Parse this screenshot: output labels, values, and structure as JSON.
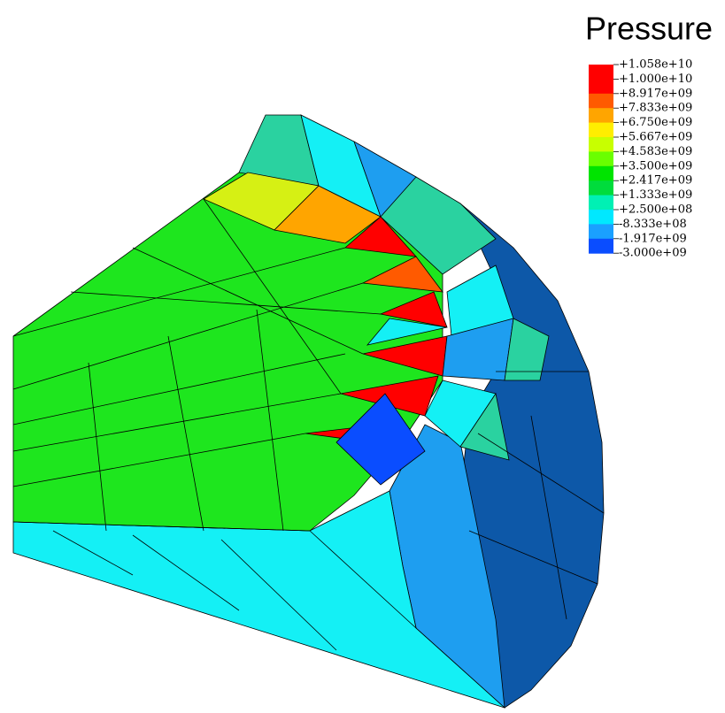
{
  "title": "Pressure",
  "legend": {
    "labels": [
      "+1.058e+10",
      "+1.000e+10",
      "+8.917e+09",
      "+7.833e+09",
      "+6.750e+09",
      "+5.667e+09",
      "+4.583e+09",
      "+3.500e+09",
      "+2.417e+09",
      "+1.333e+09",
      "+2.500e+08",
      "-8.333e+08",
      "-1.917e+09",
      "-3.000e+09"
    ],
    "colors": [
      "#ff0000",
      "#ff0000",
      "#ff5a00",
      "#ffa500",
      "#ffee00",
      "#c8ff00",
      "#6aff00",
      "#00e400",
      "#00dc3c",
      "#00f0b4",
      "#00e8ff",
      "#1aa0ff",
      "#0a4dff"
    ]
  }
}
